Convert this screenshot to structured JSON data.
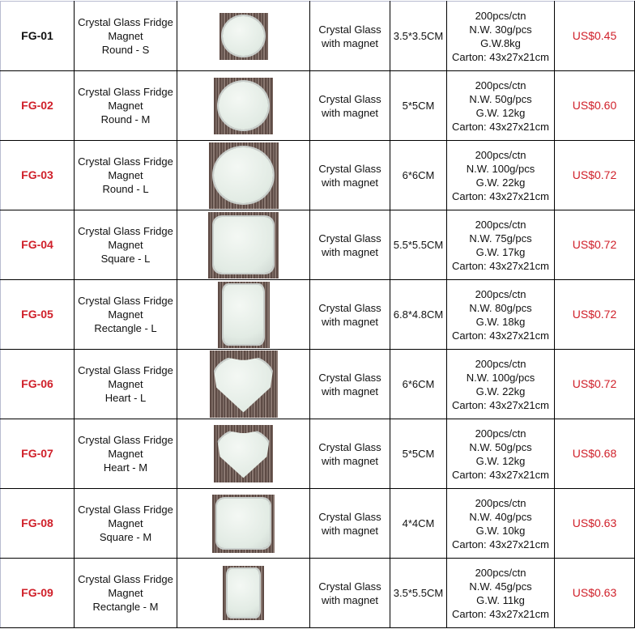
{
  "colors": {
    "price": "#d0202a",
    "code_red": "#d0202a"
  },
  "rows": [
    {
      "code": "FG-01",
      "name1": "Crystal Glass Fridge",
      "name2": "Magnet",
      "name3": "Round - S",
      "shape": "round",
      "material1": "Crystal Glass",
      "material2": "with magnet",
      "size": "3.5*3.5CM",
      "pack1": "200pcs/ctn",
      "pack2": "N.W. 30g/pcs",
      "pack3": "G.W.8kg",
      "pack4": "Carton: 43x27x21cm",
      "price": "US$0.45"
    },
    {
      "code": "FG-02",
      "name1": "Crystal Glass Fridge",
      "name2": "Magnet",
      "name3": "Round - M",
      "shape": "round",
      "material1": "Crystal Glass",
      "material2": "with magnet",
      "size": "5*5CM",
      "pack1": "200pcs/ctn",
      "pack2": "N.W. 50g/pcs",
      "pack3": "G.W. 12kg",
      "pack4": "Carton: 43x27x21cm",
      "price": "US$0.60"
    },
    {
      "code": "FG-03",
      "name1": "Crystal Glass Fridge",
      "name2": "Magnet",
      "name3": "Round - L",
      "shape": "round",
      "material1": "Crystal Glass",
      "material2": "with magnet",
      "size": "6*6CM",
      "pack1": "200pcs/ctn",
      "pack2": "N.W. 100g/pcs",
      "pack3": "G.W. 22kg",
      "pack4": "Carton: 43x27x21cm",
      "price": "US$0.72"
    },
    {
      "code": "FG-04",
      "name1": "Crystal Glass Fridge",
      "name2": "Magnet",
      "name3": "Square - L",
      "shape": "square",
      "material1": "Crystal Glass",
      "material2": "with magnet",
      "size": "5.5*5.5CM",
      "pack1": "200pcs/ctn",
      "pack2": "N.W. 75g/pcs",
      "pack3": "G.W. 17kg",
      "pack4": "Carton: 43x27x21cm",
      "price": "US$0.72"
    },
    {
      "code": "FG-05",
      "name1": "Crystal Glass Fridge",
      "name2": "Magnet",
      "name3": "Rectangle - L",
      "shape": "rect",
      "material1": "Crystal Glass",
      "material2": "with magnet",
      "size": "6.8*4.8CM",
      "pack1": "200pcs/ctn",
      "pack2": "N.W. 80g/pcs",
      "pack3": "G.W. 18kg",
      "pack4": "Carton: 43x27x21cm",
      "price": "US$0.72"
    },
    {
      "code": "FG-06",
      "name1": "Crystal Glass Fridge",
      "name2": "Magnet",
      "name3": "Heart - L",
      "shape": "heart",
      "material1": "Crystal Glass",
      "material2": "with magnet",
      "size": "6*6CM",
      "pack1": "200pcs/ctn",
      "pack2": "N.W. 100g/pcs",
      "pack3": "G.W. 22kg",
      "pack4": "Carton: 43x27x21cm",
      "price": "US$0.72"
    },
    {
      "code": "FG-07",
      "name1": "Crystal Glass Fridge",
      "name2": "Magnet",
      "name3": "Heart - M",
      "shape": "heart",
      "material1": "Crystal Glass",
      "material2": "with magnet",
      "size": "5*5CM",
      "pack1": "200pcs/ctn",
      "pack2": "N.W. 50g/pcs",
      "pack3": "G.W. 12kg",
      "pack4": "Carton: 43x27x21cm",
      "price": "US$0.68"
    },
    {
      "code": "FG-08",
      "name1": "Crystal Glass Fridge",
      "name2": "Magnet",
      "name3": "Square - M",
      "shape": "square",
      "material1": "Crystal Glass",
      "material2": "with magnet",
      "size": "4*4CM",
      "pack1": "200pcs/ctn",
      "pack2": "N.W. 40g/pcs",
      "pack3": "G.W. 10kg",
      "pack4": "Carton: 43x27x21cm",
      "price": "US$0.63"
    },
    {
      "code": "FG-09",
      "name1": "Crystal Glass Fridge",
      "name2": "Magnet",
      "name3": "Rectangle - M",
      "shape": "rect",
      "material1": "Crystal Glass",
      "material2": "with magnet",
      "size": "3.5*5.5CM",
      "pack1": "200pcs/ctn",
      "pack2": "N.W. 45g/pcs",
      "pack3": "G.W. 11kg",
      "pack4": "Carton: 43x27x21cm",
      "price": "US$0.63"
    }
  ]
}
